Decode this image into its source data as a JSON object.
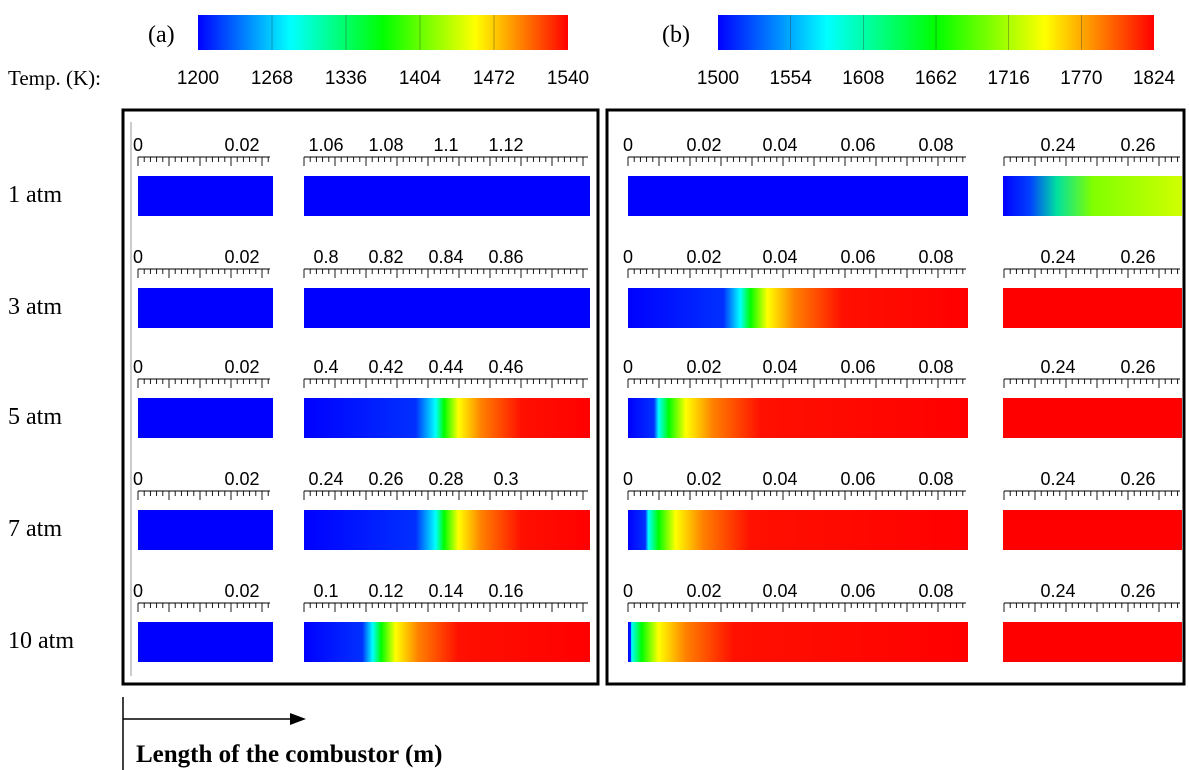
{
  "colorbars": {
    "a": {
      "label": "(a)",
      "prefix": "Temp. (K):",
      "ticks": [
        "1200",
        "1268",
        "1336",
        "1404",
        "1472",
        "1540"
      ],
      "colors": [
        "#0000ff",
        "#00ffff",
        "#00ff00",
        "#ffff00",
        "#ff0000"
      ]
    },
    "b": {
      "label": "(b)",
      "ticks": [
        "1500",
        "1554",
        "1608",
        "1662",
        "1716",
        "1770",
        "1824"
      ],
      "colors": [
        "#0000ff",
        "#00ffff",
        "#00ff00",
        "#ffff00",
        "#ff0000"
      ]
    }
  },
  "rows": [
    {
      "pressure": "1 atm",
      "a": {
        "left_ticks": [
          "0",
          "0.02"
        ],
        "right_ticks": [
          "1.06",
          "1.08",
          "1.1",
          "1.12"
        ],
        "right_field": {
          "type": "uniform",
          "front": 0,
          "front_fraction": 0
        }
      },
      "b": {
        "left_ticks": [
          "0",
          "0.02",
          "0.04",
          "0.06",
          "0.08"
        ],
        "right_ticks": [
          "0.24",
          "0.26"
        ],
        "left_field": {
          "type": "uniform",
          "front": 0
        },
        "right_field": {
          "type": "partial",
          "front_fraction": 0.3
        }
      }
    },
    {
      "pressure": "3 atm",
      "a": {
        "left_ticks": [
          "0",
          "0.02"
        ],
        "right_ticks": [
          "0.8",
          "0.82",
          "0.84",
          "0.86"
        ],
        "right_field": {
          "type": "uniform",
          "front_fraction": 0
        }
      },
      "b": {
        "left_ticks": [
          "0",
          "0.02",
          "0.04",
          "0.06",
          "0.08"
        ],
        "right_ticks": [
          "0.24",
          "0.26"
        ],
        "left_field": {
          "type": "front",
          "front_fraction": 0.33
        },
        "right_field": {
          "type": "hot"
        }
      }
    },
    {
      "pressure": "5 atm",
      "a": {
        "left_ticks": [
          "0",
          "0.02"
        ],
        "right_ticks": [
          "0.4",
          "0.42",
          "0.44",
          "0.46"
        ],
        "right_field": {
          "type": "front",
          "front_fraction": 0.46
        }
      },
      "b": {
        "left_ticks": [
          "0",
          "0.02",
          "0.04",
          "0.06",
          "0.08"
        ],
        "right_ticks": [
          "0.24",
          "0.26"
        ],
        "left_field": {
          "type": "front",
          "front_fraction": 0.09
        },
        "right_field": {
          "type": "hot"
        }
      }
    },
    {
      "pressure": "7 atm",
      "a": {
        "left_ticks": [
          "0",
          "0.02"
        ],
        "right_ticks": [
          "0.24",
          "0.26",
          "0.28",
          "0.3"
        ],
        "right_field": {
          "type": "front",
          "front_fraction": 0.46
        }
      },
      "b": {
        "left_ticks": [
          "0",
          "0.02",
          "0.04",
          "0.06",
          "0.08"
        ],
        "right_ticks": [
          "0.24",
          "0.26"
        ],
        "left_field": {
          "type": "front",
          "front_fraction": 0.06
        },
        "right_field": {
          "type": "hot"
        }
      }
    },
    {
      "pressure": "10 atm",
      "a": {
        "left_ticks": [
          "0",
          "0.02"
        ],
        "right_ticks": [
          "0.1",
          "0.12",
          "0.14",
          "0.16"
        ],
        "right_field": {
          "type": "front",
          "front_fraction": 0.24
        }
      },
      "b": {
        "left_ticks": [
          "0",
          "0.02",
          "0.04",
          "0.06",
          "0.08"
        ],
        "right_ticks": [
          "0.24",
          "0.26"
        ],
        "left_field": {
          "type": "front",
          "front_fraction": 0.01
        },
        "right_field": {
          "type": "hot"
        }
      }
    }
  ],
  "axis_label": "Length of the combustor (m)"
}
